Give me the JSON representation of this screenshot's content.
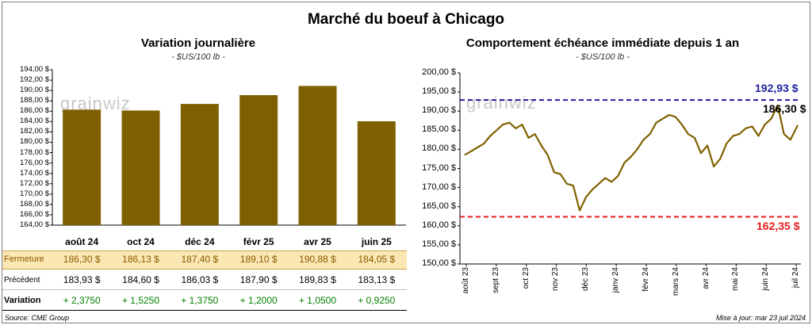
{
  "title": "Marché du boeuf à Chicago",
  "footer": {
    "source": "Source: CME Group",
    "updated": "Mise à jour: mar 23 juil 2024"
  },
  "watermark": "grainwiz",
  "colors": {
    "bar": "#7f6000",
    "line": "#7f6000",
    "high": "#1f1fa0",
    "low": "#e31a1c",
    "fermeture_band": "#fbe7b3",
    "positive": "#008000"
  },
  "chart_data": [
    {
      "type": "bar",
      "title": "Variation journalière",
      "subtitle": "- $US/100 lb -",
      "categories": [
        "août 24",
        "oct 24",
        "déc 24",
        "févr 25",
        "avr 25",
        "juin 25"
      ],
      "values": [
        186.3,
        186.13,
        187.4,
        189.1,
        190.88,
        184.05
      ],
      "ylim": [
        164,
        194
      ],
      "yticks": [
        "194,00 $",
        "192,00 $",
        "190,00 $",
        "188,00 $",
        "186,00 $",
        "184,00 $",
        "182,00 $",
        "180,00 $",
        "178,00 $",
        "176,00 $",
        "174,00 $",
        "172,00 $",
        "170,00 $",
        "168,00 $",
        "166,00 $",
        "164,00 $"
      ],
      "table": {
        "fermeture_label": "Fermeture",
        "fermeture": [
          "186,30  $",
          "186,13  $",
          "187,40  $",
          "189,10  $",
          "190,88  $",
          "184,05  $"
        ],
        "precedent_label": "Précédent",
        "precedent": [
          "183,93  $",
          "184,60  $",
          "186,03  $",
          "187,90  $",
          "189,83  $",
          "183,13  $"
        ],
        "variation_label": "Variation",
        "variation": [
          "+ 2,3750",
          "+ 1,5250",
          "+ 1,3750",
          "+ 1,2000",
          "+ 1,0500",
          "+ 0,9250"
        ]
      }
    },
    {
      "type": "line",
      "title": "Comportement  échéance immédiate depuis 1 an",
      "subtitle": "- $US/100 lb -",
      "ylim": [
        150,
        200
      ],
      "yticks": [
        "200,00 $",
        "195,00 $",
        "190,00 $",
        "185,00 $",
        "180,00 $",
        "175,00 $",
        "170,00 $",
        "165,00 $",
        "160,00 $",
        "155,00 $",
        "150,00 $"
      ],
      "xticks": [
        "août 23",
        "sept 23",
        "oct 23",
        "nov 23",
        "déc 23",
        "janv 24",
        "févr 24",
        "mars 24",
        "avr 24",
        "mai 24",
        "juin 24",
        "juil 24"
      ],
      "high": 192.93,
      "high_label": "192,93 $",
      "low": 162.35,
      "low_label": "162,35 $",
      "last_label": "186,30 $",
      "x": [
        "2023-07-24",
        "2023-07-31",
        "2023-08-07",
        "2023-08-14",
        "2023-08-21",
        "2023-08-28",
        "2023-09-04",
        "2023-09-11",
        "2023-09-18",
        "2023-09-25",
        "2023-10-02",
        "2023-10-09",
        "2023-10-16",
        "2023-10-23",
        "2023-10-30",
        "2023-11-06",
        "2023-11-13",
        "2023-11-20",
        "2023-11-27",
        "2023-12-04",
        "2023-12-11",
        "2023-12-18",
        "2023-12-25",
        "2024-01-01",
        "2024-01-08",
        "2024-01-15",
        "2024-01-22",
        "2024-01-29",
        "2024-02-05",
        "2024-02-12",
        "2024-02-19",
        "2024-02-26",
        "2024-03-04",
        "2024-03-11",
        "2024-03-18",
        "2024-03-25",
        "2024-04-01",
        "2024-04-08",
        "2024-04-15",
        "2024-04-22",
        "2024-04-29",
        "2024-05-06",
        "2024-05-13",
        "2024-05-20",
        "2024-05-27",
        "2024-06-03",
        "2024-06-10",
        "2024-06-17",
        "2024-06-24",
        "2024-07-01",
        "2024-07-08",
        "2024-07-15",
        "2024-07-23"
      ],
      "values": [
        178.5,
        179.5,
        180.5,
        181.5,
        183.5,
        185.0,
        186.5,
        187.0,
        185.5,
        186.5,
        183.0,
        184.0,
        181.0,
        178.5,
        174.0,
        173.5,
        171.0,
        170.5,
        164.0,
        167.5,
        169.5,
        171.0,
        172.5,
        171.5,
        173.0,
        176.5,
        178.0,
        180.0,
        182.5,
        184.0,
        187.0,
        188.0,
        189.0,
        188.5,
        186.5,
        184.0,
        183.0,
        179.0,
        181.0,
        175.5,
        177.5,
        181.5,
        183.5,
        184.0,
        185.5,
        186.0,
        183.5,
        186.5,
        188.0,
        191.5,
        184.0,
        182.5,
        186.3
      ]
    }
  ]
}
